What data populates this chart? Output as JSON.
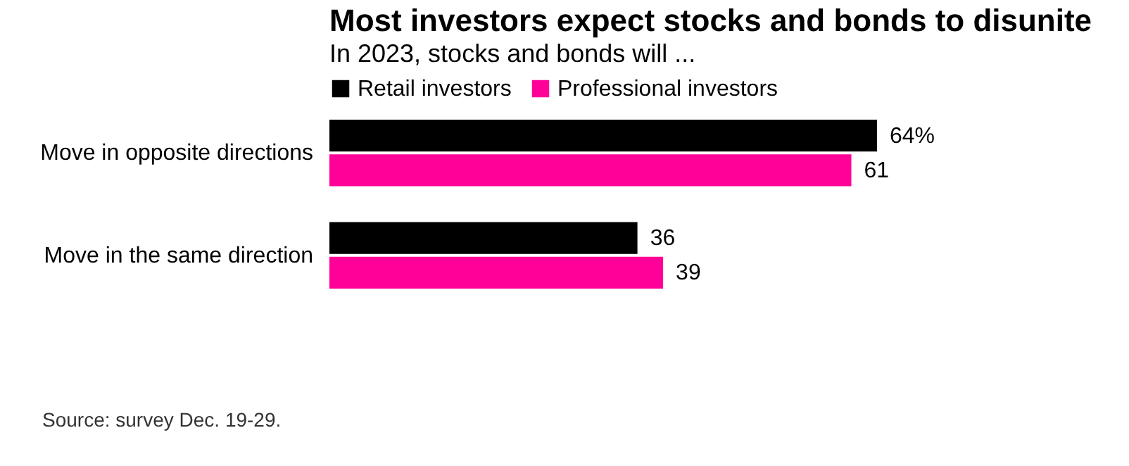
{
  "chart_data": {
    "type": "bar",
    "orientation": "horizontal",
    "title": "Most investors expect stocks and bonds to disunite",
    "subtitle": "In 2023, stocks and bonds will ...",
    "categories": [
      "Move in opposite directions",
      "Move in the same direction"
    ],
    "series": [
      {
        "name": "Retail investors",
        "color": "#000000",
        "values": [
          64,
          36
        ],
        "value_labels": [
          "64%",
          "36"
        ]
      },
      {
        "name": "Professional investors",
        "color": "#ff0099",
        "values": [
          61,
          39
        ],
        "value_labels": [
          "61",
          "39"
        ]
      }
    ],
    "legend": "top left",
    "annotations": [
      "Source: survey Dec. 19-29."
    ]
  }
}
